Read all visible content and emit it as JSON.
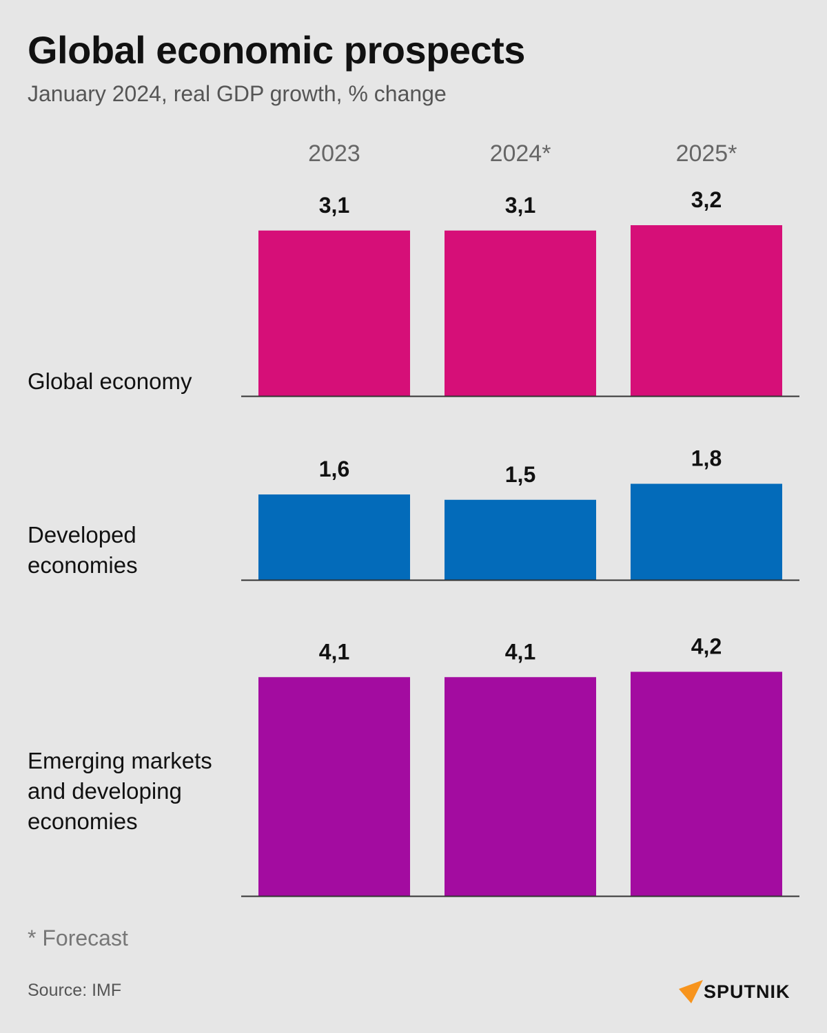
{
  "title": "Global economic prospects",
  "subtitle": "January 2024, real GDP growth, % change",
  "note": "* Forecast",
  "source": "Source: IMF",
  "logo_text": "SPUTNIK",
  "chart_data": {
    "type": "bar",
    "categories": [
      "2023",
      "2024*",
      "2025*"
    ],
    "series": [
      {
        "name": "Global economy",
        "values": [
          3.1,
          3.1,
          3.2
        ],
        "labels": [
          "3,1",
          "3,1",
          "3,2"
        ],
        "color": "#d60f78"
      },
      {
        "name": "Developed economies",
        "values": [
          1.6,
          1.5,
          1.8
        ],
        "labels": [
          "1,6",
          "1,5",
          "1,8"
        ],
        "color": "#036bba"
      },
      {
        "name": "Emerging markets and developing economies",
        "values": [
          4.1,
          4.1,
          4.2
        ],
        "labels": [
          "4,1",
          "4,1",
          "4,2"
        ],
        "color": "#a30ca0"
      }
    ],
    "row_labels": [
      [
        "Global economy"
      ],
      [
        "Developed",
        "economies"
      ],
      [
        "Emerging markets",
        "and developing",
        "economies"
      ]
    ]
  }
}
